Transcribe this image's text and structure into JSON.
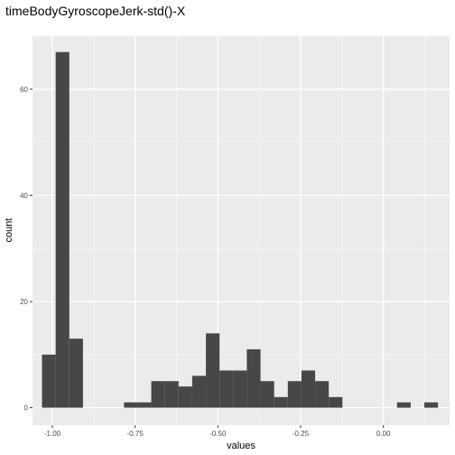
{
  "chart_data": {
    "type": "bar",
    "title": "timeBodyGyroscopeJerk-std()-X",
    "xlabel": "values",
    "ylabel": "count",
    "xlim": [
      -1.06,
      0.2
    ],
    "ylim": [
      -3.3,
      70
    ],
    "x_ticks": [
      -1.0,
      -0.75,
      -0.5,
      -0.25,
      0.0
    ],
    "x_tick_labels": [
      "-1.00",
      "-0.75",
      "-0.50",
      "-0.25",
      "0.00"
    ],
    "y_ticks": [
      0,
      20,
      40,
      60
    ],
    "y_tick_labels": [
      "0",
      "20",
      "40",
      "60"
    ],
    "grid": true,
    "bar_color": "#474747",
    "panel_color": "#ebebeb",
    "bins": [
      {
        "x0": -1.0313,
        "x1": -0.99,
        "count": 10
      },
      {
        "x0": -0.99,
        "x1": -0.9488,
        "count": 67
      },
      {
        "x0": -0.9488,
        "x1": -0.9075,
        "count": 13
      },
      {
        "x0": -0.9075,
        "x1": -0.8662,
        "count": 0
      },
      {
        "x0": -0.8662,
        "x1": -0.825,
        "count": 0
      },
      {
        "x0": -0.825,
        "x1": -0.7837,
        "count": 0
      },
      {
        "x0": -0.7837,
        "x1": -0.7425,
        "count": 1
      },
      {
        "x0": -0.7425,
        "x1": -0.7012,
        "count": 1
      },
      {
        "x0": -0.7012,
        "x1": -0.66,
        "count": 5
      },
      {
        "x0": -0.66,
        "x1": -0.6187,
        "count": 5
      },
      {
        "x0": -0.6187,
        "x1": -0.5775,
        "count": 4
      },
      {
        "x0": -0.5775,
        "x1": -0.5362,
        "count": 6
      },
      {
        "x0": -0.5362,
        "x1": -0.495,
        "count": 14
      },
      {
        "x0": -0.495,
        "x1": -0.4537,
        "count": 7
      },
      {
        "x0": -0.4537,
        "x1": -0.4125,
        "count": 7
      },
      {
        "x0": -0.4125,
        "x1": -0.3712,
        "count": 11
      },
      {
        "x0": -0.3712,
        "x1": -0.33,
        "count": 5
      },
      {
        "x0": -0.33,
        "x1": -0.2887,
        "count": 2
      },
      {
        "x0": -0.2887,
        "x1": -0.2475,
        "count": 5
      },
      {
        "x0": -0.2475,
        "x1": -0.2062,
        "count": 7
      },
      {
        "x0": -0.2062,
        "x1": -0.165,
        "count": 5
      },
      {
        "x0": -0.165,
        "x1": -0.1237,
        "count": 2
      },
      {
        "x0": -0.1237,
        "x1": -0.0825,
        "count": 0
      },
      {
        "x0": -0.0825,
        "x1": -0.0412,
        "count": 0
      },
      {
        "x0": -0.0412,
        "x1": 0.0,
        "count": 0
      },
      {
        "x0": 0.0,
        "x1": 0.0412,
        "count": 0
      },
      {
        "x0": 0.0412,
        "x1": 0.0825,
        "count": 1
      },
      {
        "x0": 0.0825,
        "x1": 0.1237,
        "count": 0
      },
      {
        "x0": 0.1237,
        "x1": 0.165,
        "count": 1
      }
    ]
  }
}
